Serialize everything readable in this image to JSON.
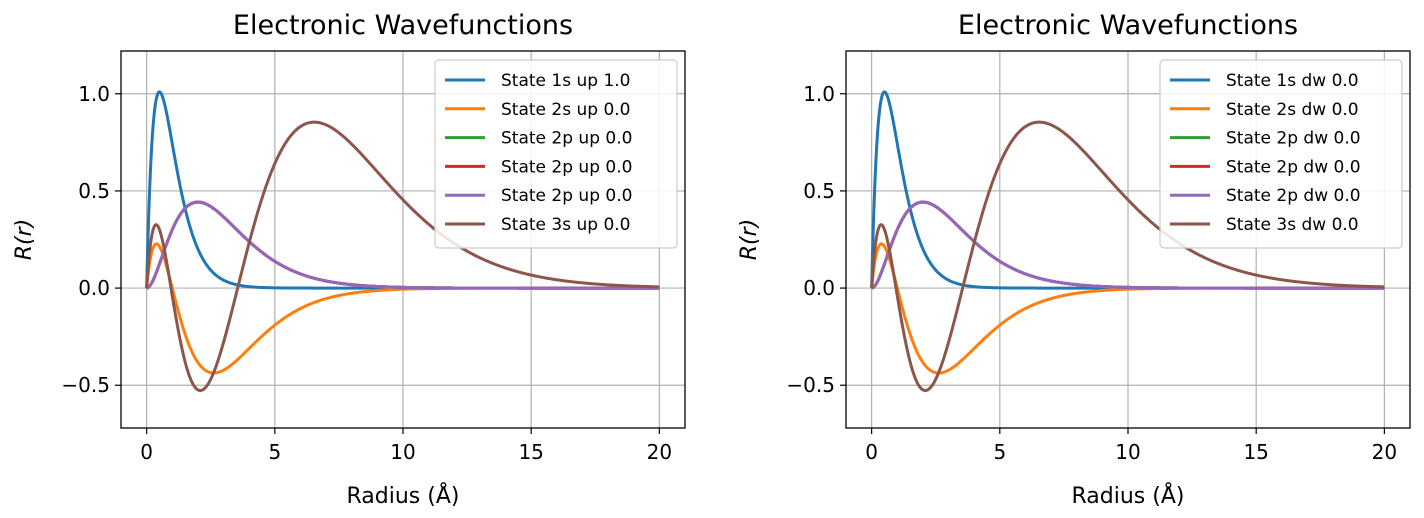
{
  "chart_data": [
    {
      "type": "line",
      "title": "Electronic Wavefunctions",
      "xlabel": "Radius (Å)",
      "ylabel": "R(r)",
      "xlim": [
        -1,
        21
      ],
      "ylim": [
        -0.72,
        1.22
      ],
      "xticks": [
        0,
        5,
        10,
        15,
        20
      ],
      "xtick_labels": [
        "0",
        "5",
        "10",
        "15",
        "20"
      ],
      "yticks": [
        -0.5,
        0.0,
        0.5,
        1.0
      ],
      "ytick_labels": [
        "−0.5",
        "0.0",
        "0.5",
        "1.0"
      ],
      "grid": true,
      "legend_position": "top-right",
      "series": [
        {
          "name": "State 1s up 1.0",
          "color": "#1f77b4",
          "orbital": "1s"
        },
        {
          "name": "State 2s up 0.0",
          "color": "#ff7f0e",
          "orbital": "2s"
        },
        {
          "name": "State 2p up 0.0",
          "color": "#2ca02c",
          "orbital": "2p"
        },
        {
          "name": "State 2p up 0.0",
          "color": "#d62728",
          "orbital": "2p"
        },
        {
          "name": "State 2p up 0.0",
          "color": "#9467bd",
          "orbital": "2p"
        },
        {
          "name": "State 3s up 0.0",
          "color": "#8c564b",
          "orbital": "3s"
        }
      ]
    },
    {
      "type": "line",
      "title": "Electronic Wavefunctions",
      "xlabel": "Radius (Å)",
      "ylabel": "R(r)",
      "xlim": [
        -1,
        21
      ],
      "ylim": [
        -0.72,
        1.22
      ],
      "xticks": [
        0,
        5,
        10,
        15,
        20
      ],
      "xtick_labels": [
        "0",
        "5",
        "10",
        "15",
        "20"
      ],
      "yticks": [
        -0.5,
        0.0,
        0.5,
        1.0
      ],
      "ytick_labels": [
        "−0.5",
        "0.0",
        "0.5",
        "1.0"
      ],
      "grid": true,
      "legend_position": "top-right",
      "series": [
        {
          "name": "State 1s dw 0.0",
          "color": "#1f77b4",
          "orbital": "1s"
        },
        {
          "name": "State 2s dw 0.0",
          "color": "#ff7f0e",
          "orbital": "2s"
        },
        {
          "name": "State 2p dw 0.0",
          "color": "#2ca02c",
          "orbital": "2p"
        },
        {
          "name": "State 2p dw 0.0",
          "color": "#d62728",
          "orbital": "2p"
        },
        {
          "name": "State 2p dw 0.0",
          "color": "#9467bd",
          "orbital": "2p"
        },
        {
          "name": "State 3s dw 0.0",
          "color": "#8c564b",
          "orbital": "3s"
        }
      ]
    }
  ]
}
